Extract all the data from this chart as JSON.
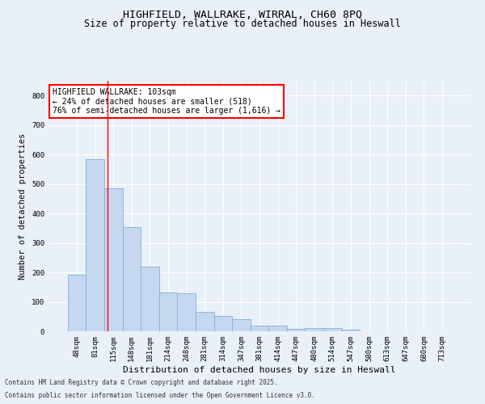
{
  "title1": "HIGHFIELD, WALLRAKE, WIRRAL, CH60 8PQ",
  "title2": "Size of property relative to detached houses in Heswall",
  "xlabel": "Distribution of detached houses by size in Heswall",
  "ylabel": "Number of detached properties",
  "categories": [
    "48sqm",
    "81sqm",
    "115sqm",
    "148sqm",
    "181sqm",
    "214sqm",
    "248sqm",
    "281sqm",
    "314sqm",
    "347sqm",
    "381sqm",
    "414sqm",
    "447sqm",
    "480sqm",
    "514sqm",
    "547sqm",
    "580sqm",
    "613sqm",
    "647sqm",
    "680sqm",
    "713sqm"
  ],
  "values": [
    192,
    585,
    485,
    355,
    218,
    132,
    130,
    65,
    52,
    40,
    18,
    18,
    7,
    12,
    12,
    5,
    0,
    0,
    0,
    0,
    0
  ],
  "bar_color": "#c5d8f0",
  "bar_edge_color": "#7fb0d8",
  "ylim": [
    0,
    850
  ],
  "yticks": [
    0,
    100,
    200,
    300,
    400,
    500,
    600,
    700,
    800
  ],
  "red_line_x": 1.67,
  "annotation_text": "HIGHFIELD WALLRAKE: 103sqm\n← 24% of detached houses are smaller (518)\n76% of semi-detached houses are larger (1,616) →",
  "annotation_box_color": "white",
  "annotation_box_edge": "red",
  "footer1": "Contains HM Land Registry data © Crown copyright and database right 2025.",
  "footer2": "Contains public sector information licensed under the Open Government Licence v3.0.",
  "background_color": "#eaf0f8",
  "grid_color": "white",
  "title_fontsize": 9.5,
  "subtitle_fontsize": 8.5,
  "ylabel_fontsize": 7.5,
  "xlabel_fontsize": 8,
  "tick_fontsize": 6.5,
  "ann_fontsize": 7,
  "footer_fontsize": 5.5
}
